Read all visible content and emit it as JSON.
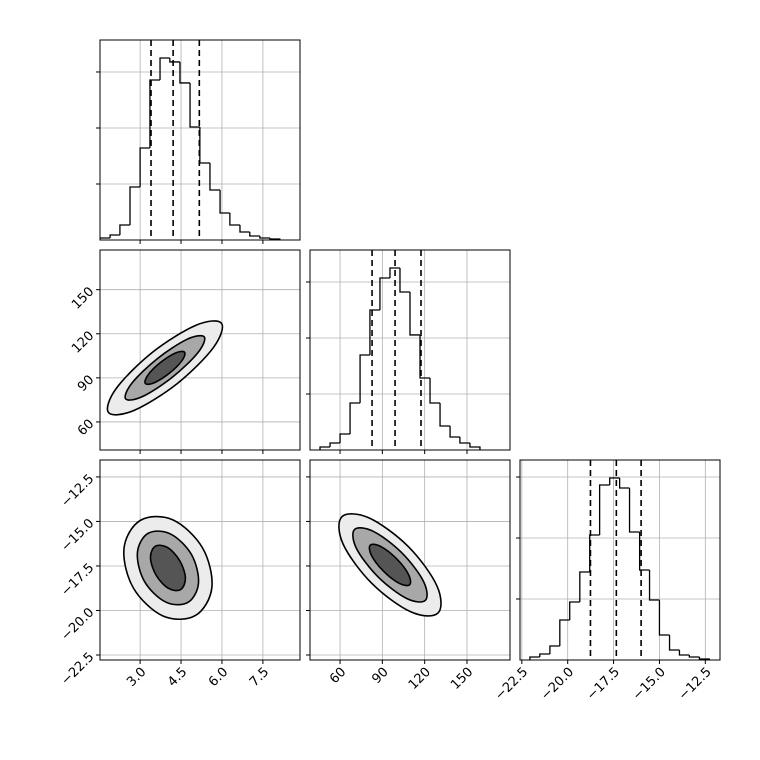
{
  "chart_data": [
    {
      "type": "histogram",
      "bins": [
        1.53,
        1.9,
        2.26,
        2.63,
        3.0,
        3.36,
        3.73,
        4.09,
        4.46,
        4.83,
        5.19,
        5.56,
        5.93,
        6.29,
        6.66,
        7.02,
        7.39,
        7.76,
        8.12
      ],
      "values": [
        36,
        89,
        268,
        946,
        1643,
        2857,
        3250,
        3179,
        2804,
        2018,
        1375,
        893,
        482,
        268,
        143,
        71,
        36,
        18
      ],
      "xlim": [
        1.53,
        8.86
      ],
      "ylim": [
        0,
        3571
      ],
      "yticks": [
        1000,
        2000,
        3000
      ],
      "show_ytick_labels": false,
      "quantile_lines": [
        3.4,
        4.21,
        5.17
      ],
      "grid": true,
      "color": "#000000"
    },
    {
      "type": "contour",
      "xlim": [
        1.53,
        8.86
      ],
      "ylim": [
        40.9,
        177
      ],
      "yticks": [
        60,
        90,
        120,
        150
      ],
      "grid": true,
      "contours": [
        {
          "x": [
            5.98,
            5.69,
            4.36,
            2.77,
            1.84,
            2.13,
            3.46,
            5.05
          ],
          "y": [
            127.2,
            110.7,
            86.1,
            67.8,
            66.4,
            82.9,
            107.5,
            125.8
          ]
        },
        {
          "x": [
            5.35,
            5.12,
            4.18,
            3.09,
            2.47,
            2.7,
            3.64,
            4.73
          ],
          "y": [
            117.9,
            107.2,
            90.4,
            77.3,
            75.7,
            86.4,
            103.2,
            116.3
          ]
        },
        {
          "x": [
            4.63,
            4.53,
            4.07,
            3.51,
            3.19,
            3.29,
            3.75,
            4.31
          ],
          "y": [
            107.4,
            101.6,
            93.1,
            86.6,
            86.2,
            92.0,
            100.5,
            107.0
          ]
        }
      ]
    },
    {
      "type": "histogram",
      "bins": [
        45.8,
        52.9,
        60.0,
        67.1,
        74.2,
        81.2,
        88.3,
        95.4,
        102.5,
        109.6,
        116.7,
        123.8,
        130.9,
        138.0,
        145.0,
        152.1,
        159.2
      ],
      "values": [
        54,
        125,
        286,
        839,
        1696,
        2500,
        3071,
        3250,
        2821,
        2054,
        1286,
        839,
        429,
        232,
        125,
        54
      ],
      "xlim": [
        38.7,
        180.5
      ],
      "ylim": [
        0,
        3571
      ],
      "yticks": [
        1000,
        2000,
        3000
      ],
      "show_ytick_labels": false,
      "quantile_lines": [
        82.7,
        99.0,
        117.4
      ],
      "grid": true,
      "color": "#000000"
    },
    {
      "type": "contour",
      "xlim": [
        1.53,
        8.86
      ],
      "ylim": [
        -22.78,
        -11.55
      ],
      "xticks": [
        {
          "value": 3,
          "label": "3.0"
        },
        4.5,
        {
          "value": 6,
          "label": "6.0"
        },
        7.5
      ],
      "yticks": [
        {
          "value": -12.5,
          "label": "−12.5"
        },
        {
          "value": -15,
          "label": "−15.0"
        },
        {
          "value": -17.5,
          "label": "−17.5"
        },
        {
          "value": -20,
          "label": "−20.0"
        },
        {
          "value": -22.5,
          "label": "−22.5"
        }
      ],
      "grid": true,
      "contours": [
        {
          "x": [
            5.03,
            3.84,
            2.75,
            2.41,
            3.01,
            4.2,
            5.29,
            5.63
          ],
          "y": [
            -20.28,
            -20.31,
            -18.73,
            -16.51,
            -14.94,
            -14.91,
            -16.49,
            -18.71
          ]
        },
        {
          "x": [
            4.75,
            3.93,
            3.16,
            2.9,
            3.29,
            4.11,
            4.88,
            5.14
          ],
          "y": [
            -19.55,
            -19.52,
            -18.37,
            -16.77,
            -15.67,
            -15.7,
            -16.85,
            -18.45
          ]
        },
        {
          "x": [
            4.48,
            4.03,
            3.58,
            3.38,
            3.56,
            4.01,
            4.46,
            4.66
          ],
          "y": [
            -18.83,
            -18.75,
            -18.0,
            -17.03,
            -16.39,
            -16.47,
            -17.22,
            -18.19
          ]
        }
      ]
    },
    {
      "type": "contour",
      "xlim": [
        38.7,
        180.5
      ],
      "ylim": [
        -22.78,
        -11.55
      ],
      "xticks": [
        60,
        90,
        120,
        150
      ],
      "grid": true,
      "contours": [
        {
          "x": [
            129.5,
            110.3,
            82.4,
            62.1,
            61.3,
            80.5,
            108.4,
            128.7
          ],
          "y": [
            -20.14,
            -20.08,
            -18.47,
            -16.26,
            -14.74,
            -14.8,
            -16.41,
            -18.62
          ]
        },
        {
          "x": [
            120.5,
            107.1,
            86.9,
            71.6,
            70.3,
            83.7,
            103.9,
            119.2
          ],
          "y": [
            -19.43,
            -19.32,
            -18.11,
            -16.51,
            -15.45,
            -15.56,
            -16.77,
            -18.37
          ]
        },
        {
          "x": [
            109.4,
            102.1,
            90.9,
            82.3,
            81.4,
            88.7,
            99.9,
            108.5
          ],
          "y": [
            -18.55,
            -18.48,
            -17.8,
            -16.91,
            -16.33,
            -16.4,
            -17.08,
            -17.97
          ]
        }
      ]
    },
    {
      "type": "histogram",
      "bins": [
        -22.06,
        -21.52,
        -20.97,
        -20.43,
        -19.89,
        -19.34,
        -18.8,
        -18.26,
        -17.71,
        -17.17,
        -16.63,
        -16.08,
        -15.54,
        -15.0,
        -14.45,
        -13.91,
        -13.37,
        -12.82,
        -12.28
      ],
      "values": [
        49,
        98,
        230,
        656,
        951,
        1443,
        2049,
        2869,
        2984,
        2820,
        2098,
        1475,
        984,
        410,
        164,
        82,
        49,
        16
      ],
      "xlim": [
        -22.6,
        -11.7
      ],
      "ylim": [
        0,
        3279
      ],
      "yticks": [
        1000,
        2000,
        3000
      ],
      "show_ytick_labels": false,
      "xticks": [
        {
          "value": -22.5,
          "label": "−22.5"
        },
        {
          "value": -20,
          "label": "−20.0"
        },
        {
          "value": -17.5,
          "label": "−17.5"
        },
        {
          "value": -15,
          "label": "−15.0"
        },
        {
          "value": -12.5,
          "label": "−12.5"
        }
      ],
      "quantile_lines": [
        -18.76,
        -17.35,
        -16.0
      ],
      "grid": true,
      "color": "#000000"
    }
  ]
}
